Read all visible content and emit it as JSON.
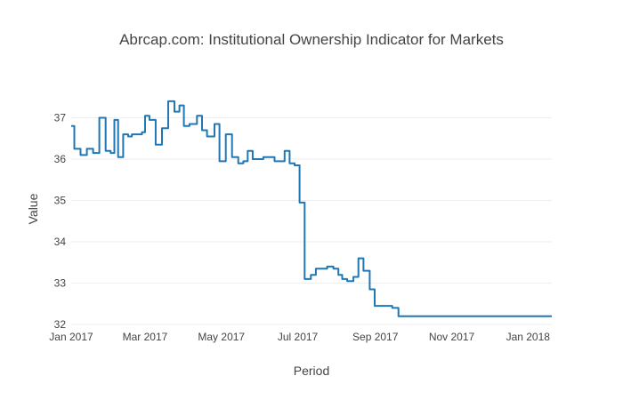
{
  "colors": {
    "series": "#1f77b4",
    "grid": "#eeeeee",
    "text": "#444444"
  },
  "chart_data": {
    "type": "line",
    "title": "Abrcap.com: Institutional Ownership Indicator for Markets",
    "xlabel": "Period",
    "ylabel": "Value",
    "x_ticks": [
      "Jan 2017",
      "Mar 2017",
      "May 2017",
      "Jul 2017",
      "Sep 2017",
      "Nov 2017",
      "Jan 2018"
    ],
    "y_ticks": [
      "32",
      "33",
      "34",
      "35",
      "36",
      "37"
    ],
    "xlim": [
      "2017-01-01",
      "2018-01-20"
    ],
    "ylim": [
      32,
      37.7
    ],
    "grid": "horizontal",
    "line_shape": "step",
    "series": [
      {
        "x": [
          "2017-01-01",
          "2017-01-06",
          "2017-01-11",
          "2017-01-16",
          "2017-01-21",
          "2017-01-26",
          "2017-01-31",
          "2017-02-03",
          "2017-02-06",
          "2017-02-09",
          "2017-02-14",
          "2017-02-17",
          "2017-02-20",
          "2017-02-25",
          "2017-02-28",
          "2017-03-02",
          "2017-03-07",
          "2017-03-12",
          "2017-03-17",
          "2017-03-22",
          "2017-03-27",
          "2017-03-30",
          "2017-04-03",
          "2017-04-08",
          "2017-04-10",
          "2017-04-13",
          "2017-04-18",
          "2017-04-21",
          "2017-04-24",
          "2017-04-27",
          "2017-05-02",
          "2017-05-07",
          "2017-05-12",
          "2017-05-17",
          "2017-05-20",
          "2017-05-24",
          "2017-05-28",
          "2017-06-02",
          "2017-06-05",
          "2017-06-10",
          "2017-06-15",
          "2017-06-18",
          "2017-06-23",
          "2017-06-26",
          "2017-07-01",
          "2017-07-04",
          "2017-07-09",
          "2017-07-14",
          "2017-07-17",
          "2017-07-22",
          "2017-07-27",
          "2017-08-01",
          "2017-08-04",
          "2017-08-07",
          "2017-08-12",
          "2017-08-17",
          "2017-08-20",
          "2017-08-25",
          "2017-08-30",
          "2017-09-02",
          "2017-09-04",
          "2017-09-09",
          "2017-09-12",
          "2017-09-17",
          "2017-09-22",
          "2017-09-27",
          "2017-09-30",
          "2017-10-04",
          "2017-10-07",
          "2017-10-12",
          "2017-10-17",
          "2017-10-22",
          "2017-10-25",
          "2017-10-30",
          "2017-11-02",
          "2017-11-07",
          "2017-11-12",
          "2017-11-17",
          "2017-11-20",
          "2017-11-25",
          "2017-12-01",
          "2017-12-06",
          "2017-12-09",
          "2017-12-14",
          "2017-12-19",
          "2017-12-24",
          "2017-12-29",
          "2018-01-01",
          "2018-01-06",
          "2018-01-20"
        ],
        "y": [
          36.8,
          36.25,
          36.1,
          36.25,
          36.15,
          37.0,
          36.2,
          36.15,
          36.95,
          36.05,
          36.6,
          36.55,
          36.6,
          36.6,
          36.65,
          37.05,
          36.95,
          36.35,
          36.75,
          37.4,
          37.15,
          37.3,
          36.8,
          36.85,
          36.85,
          37.05,
          36.7,
          36.55,
          36.55,
          36.85,
          35.95,
          36.6,
          36.05,
          35.9,
          35.95,
          36.2,
          36.0,
          36.0,
          36.05,
          36.05,
          35.95,
          35.95,
          36.2,
          35.9,
          35.85,
          34.95,
          33.1,
          33.2,
          33.35,
          33.35,
          33.4,
          33.35,
          33.2,
          33.1,
          33.05,
          33.15,
          33.6,
          33.3,
          32.85,
          32.45,
          32.45,
          32.45,
          32.45,
          32.4,
          32.2,
          32.2,
          32.2,
          32.2,
          32.2,
          32.2,
          32.2,
          32.2,
          32.2,
          32.2,
          32.2,
          32.2,
          32.2,
          32.2,
          32.2,
          32.2,
          32.2,
          32.2,
          32.2,
          32.2,
          32.2,
          32.2,
          32.2,
          32.2,
          32.2,
          32.2
        ]
      }
    ]
  }
}
